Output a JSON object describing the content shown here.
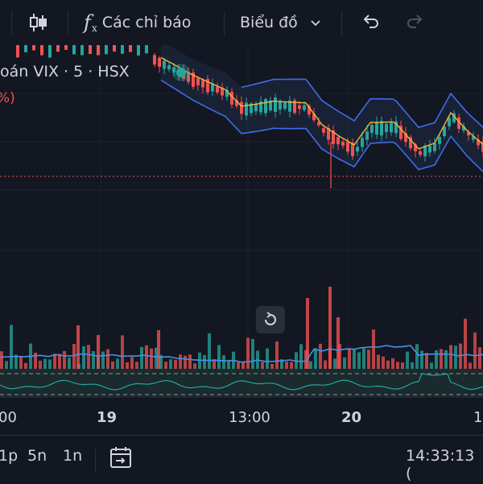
{
  "toolbar": {
    "indicators_label": "Các chỉ báo",
    "chart_type_label": "Biểu đồ"
  },
  "legend": {
    "symbol_text": "oán VIX · 5 · HSX",
    "change_text": "%)"
  },
  "xaxis": {
    "labels": [
      "00",
      "19",
      "13:00",
      "20",
      "1"
    ]
  },
  "bottombar": {
    "range_1p": "1p",
    "range_5n": "5n",
    "range_1n": "1n",
    "clock": "14:33:13 ("
  },
  "icons": {
    "candles": "candles-icon",
    "fx": "fx-icon",
    "undo": "undo-icon",
    "redo": "redo-icon",
    "calendar": "calendar-goto-icon",
    "reset": "reset-icon"
  },
  "colors": {
    "background": "#131722",
    "up": "#26a69a",
    "down": "#ef5350",
    "ma": "#f0b43c",
    "band": "#3d6ee8",
    "volume_ma": "#4a8fe7",
    "oscillator": "#26a69a"
  }
}
